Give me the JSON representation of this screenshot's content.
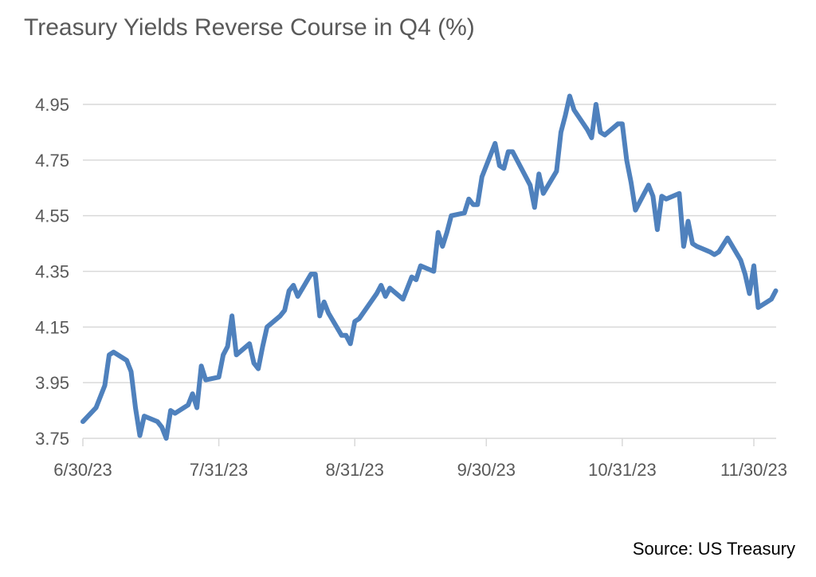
{
  "chart_data": {
    "type": "line",
    "title": "Treasury Yields Reverse Course in Q4 (%)",
    "source": "Source: US Treasury",
    "line_color": "#4F81BD",
    "grid_color": "#D9D9D9",
    "text_color": "#595959",
    "ylim": [
      3.75,
      5.0
    ],
    "yticks": [
      "3.75",
      "3.95",
      "4.15",
      "4.35",
      "4.55",
      "4.75",
      "4.95"
    ],
    "xticks": [
      "6/30/23",
      "7/31/23",
      "8/31/23",
      "9/30/23",
      "10/31/23",
      "11/30/23"
    ],
    "gridlines": "horizontal",
    "legend": "none",
    "series": [
      {
        "x": [
          "6/30/23",
          "7/3/23",
          "7/5/23",
          "7/6/23",
          "7/7/23",
          "7/10/23",
          "7/11/23",
          "7/12/23",
          "7/13/23",
          "7/14/23",
          "7/17/23",
          "7/18/23",
          "7/19/23",
          "7/20/23",
          "7/21/23",
          "7/24/23",
          "7/25/23",
          "7/26/23",
          "7/27/23",
          "7/28/23",
          "7/31/23",
          "8/1/23",
          "8/2/23",
          "8/3/23",
          "8/4/23",
          "8/7/23",
          "8/8/23",
          "8/9/23",
          "8/10/23",
          "8/11/23",
          "8/14/23",
          "8/15/23",
          "8/16/23",
          "8/17/23",
          "8/18/23",
          "8/21/23",
          "8/22/23",
          "8/23/23",
          "8/24/23",
          "8/25/23",
          "8/28/23",
          "8/29/23",
          "8/30/23",
          "8/31/23",
          "9/1/23",
          "9/5/23",
          "9/6/23",
          "9/7/23",
          "9/8/23",
          "9/11/23",
          "9/12/23",
          "9/13/23",
          "9/14/23",
          "9/15/23",
          "9/18/23",
          "9/19/23",
          "9/20/23",
          "9/21/23",
          "9/22/23",
          "9/25/23",
          "9/26/23",
          "9/27/23",
          "9/28/23",
          "9/29/23",
          "10/2/23",
          "10/3/23",
          "10/4/23",
          "10/5/23",
          "10/6/23",
          "10/10/23",
          "10/11/23",
          "10/12/23",
          "10/13/23",
          "10/16/23",
          "10/17/23",
          "10/18/23",
          "10/19/23",
          "10/20/23",
          "10/23/23",
          "10/24/23",
          "10/25/23",
          "10/26/23",
          "10/27/23",
          "10/30/23",
          "10/31/23",
          "11/1/23",
          "11/2/23",
          "11/3/23",
          "11/6/23",
          "11/7/23",
          "11/8/23",
          "11/9/23",
          "11/10/23",
          "11/13/23",
          "11/14/23",
          "11/15/23",
          "11/16/23",
          "11/17/23",
          "11/20/23",
          "11/21/23",
          "11/22/23",
          "11/24/23",
          "11/27/23",
          "11/28/23",
          "11/29/23",
          "11/30/23",
          "12/1/23",
          "12/4/23",
          "12/5/23"
        ],
        "y": [
          3.81,
          3.86,
          3.94,
          4.05,
          4.06,
          4.03,
          3.99,
          3.86,
          3.76,
          3.83,
          3.81,
          3.79,
          3.75,
          3.85,
          3.84,
          3.87,
          3.91,
          3.86,
          4.01,
          3.96,
          3.97,
          4.05,
          4.08,
          4.19,
          4.05,
          4.09,
          4.02,
          4.0,
          4.08,
          4.15,
          4.19,
          4.21,
          4.28,
          4.3,
          4.26,
          4.34,
          4.34,
          4.19,
          4.24,
          4.2,
          4.12,
          4.12,
          4.09,
          4.17,
          4.18,
          4.27,
          4.3,
          4.26,
          4.29,
          4.25,
          4.29,
          4.33,
          4.32,
          4.37,
          4.35,
          4.49,
          4.44,
          4.49,
          4.55,
          4.56,
          4.61,
          4.59,
          4.59,
          4.69,
          4.81,
          4.73,
          4.72,
          4.78,
          4.78,
          4.66,
          4.58,
          4.7,
          4.63,
          4.71,
          4.85,
          4.91,
          4.98,
          4.93,
          4.86,
          4.83,
          4.95,
          4.85,
          4.84,
          4.88,
          4.88,
          4.75,
          4.67,
          4.57,
          4.66,
          4.62,
          4.5,
          4.62,
          4.61,
          4.63,
          4.44,
          4.53,
          4.45,
          4.44,
          4.42,
          4.41,
          4.42,
          4.47,
          4.39,
          4.34,
          4.27,
          4.37,
          4.22,
          4.25,
          4.28
        ]
      }
    ]
  }
}
